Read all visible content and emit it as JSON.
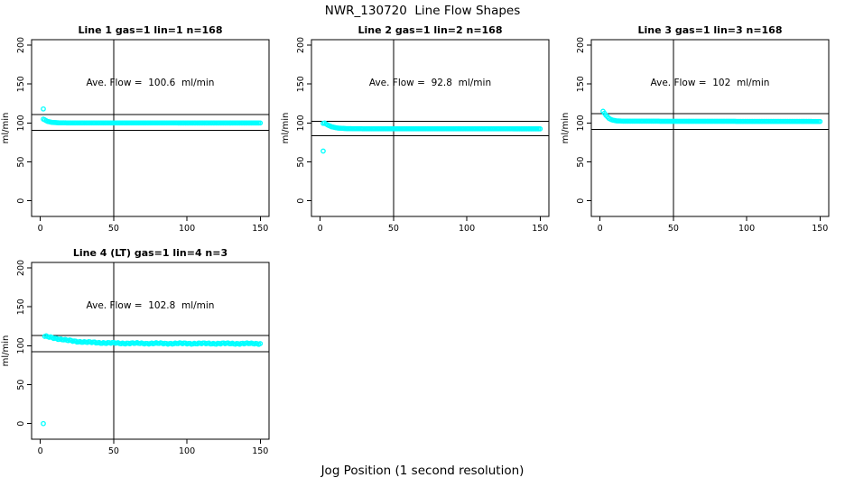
{
  "page_title": "NWR_130720  Line Flow Shapes",
  "outer_x_axis_label": "Jog Position (1 second resolution)",
  "colors": {
    "background": "#ffffff",
    "axis": "#000000",
    "point": "#00ffff",
    "text": "#000000"
  },
  "chart_data": [
    {
      "type": "scatter",
      "title": "Line 1 gas=1 lin=1 n=168",
      "line": 1,
      "gas": 1,
      "lin": 1,
      "n": 168,
      "ave_flow_ml_min": 100.6,
      "annotation": "Ave. Flow =  100.6  ml/min",
      "annotation_pos": [
        99,
        150
      ],
      "ylabel": "ml/min",
      "xticks": [
        0,
        50,
        100,
        150
      ],
      "yticks": [
        0,
        50,
        100,
        150,
        200
      ],
      "xlim": [
        -6,
        156
      ],
      "ylim": [
        -20,
        207
      ],
      "vline_x": 50,
      "ref_lines": [
        110.7,
        90.5
      ],
      "series": [
        {
          "name": "flow-trace",
          "step": 1,
          "noise": 0,
          "anchors": [
            [
              2,
              105
            ],
            [
              3,
              104
            ],
            [
              5,
              102
            ],
            [
              8,
              100.8
            ],
            [
              12,
              100.3
            ],
            [
              20,
              100.1
            ],
            [
              150,
              100
            ]
          ]
        }
      ],
      "outliers": [
        [
          2,
          118
        ]
      ]
    },
    {
      "type": "scatter",
      "title": "Line 2 gas=1 lin=2 n=168",
      "line": 2,
      "gas": 1,
      "lin": 2,
      "n": 168,
      "ave_flow_ml_min": 92.8,
      "annotation": "Ave. Flow =  92.8  ml/min",
      "annotation_pos": [
        99,
        150
      ],
      "ylabel": "ml/min",
      "xticks": [
        0,
        50,
        100,
        150
      ],
      "yticks": [
        0,
        50,
        100,
        150,
        200
      ],
      "xlim": [
        -6,
        156
      ],
      "ylim": [
        -20,
        207
      ],
      "vline_x": 50,
      "ref_lines": [
        102.1,
        83.5
      ],
      "series": [
        {
          "name": "flow-trace",
          "step": 1,
          "noise": 0,
          "anchors": [
            [
              2,
              99.5
            ],
            [
              3,
              100
            ],
            [
              5,
              97.5
            ],
            [
              8,
              95
            ],
            [
              12,
              93.5
            ],
            [
              18,
              92.8
            ],
            [
              30,
              92.6
            ],
            [
              150,
              92.5
            ]
          ]
        }
      ],
      "outliers": [
        [
          2,
          64
        ]
      ]
    },
    {
      "type": "scatter",
      "title": "Line 3 gas=1 lin=3 n=168",
      "line": 3,
      "gas": 1,
      "lin": 3,
      "n": 168,
      "ave_flow_ml_min": 102,
      "annotation": "Ave. Flow =  102  ml/min",
      "annotation_pos": [
        99,
        150
      ],
      "ylabel": "ml/min",
      "xticks": [
        0,
        50,
        100,
        150
      ],
      "yticks": [
        0,
        50,
        100,
        150,
        200
      ],
      "xlim": [
        -6,
        156
      ],
      "ylim": [
        -20,
        207
      ],
      "vline_x": 50,
      "ref_lines": [
        112.2,
        91.8
      ],
      "series": [
        {
          "name": "flow-trace",
          "step": 1,
          "noise": 0,
          "anchors": [
            [
              2,
              115
            ],
            [
              4,
              110
            ],
            [
              6,
              106
            ],
            [
              8,
              104
            ],
            [
              11,
              102.8
            ],
            [
              16,
              102.3
            ],
            [
              150,
              102
            ]
          ]
        }
      ],
      "outliers": []
    },
    {
      "type": "scatter",
      "title": "Line 4 (LT) gas=1 lin=4 n=3",
      "line": 4,
      "gas": 1,
      "lin": 4,
      "n": 3,
      "ave_flow_ml_min": 102.8,
      "annotation": "Ave. Flow =  102.8  ml/min",
      "annotation_pos": [
        99,
        150
      ],
      "ylabel": "ml/min",
      "xticks": [
        0,
        50,
        100,
        150
      ],
      "yticks": [
        0,
        50,
        100,
        150,
        200
      ],
      "xlim": [
        -6,
        156
      ],
      "ylim": [
        -20,
        207
      ],
      "vline_x": 50,
      "ref_lines": [
        113.1,
        92.5
      ],
      "series": [
        {
          "name": "flow-trace",
          "step": 1,
          "noise": 0.6,
          "anchors": [
            [
              3,
              112
            ],
            [
              5,
              111.5
            ],
            [
              8,
              110.5
            ],
            [
              12,
              109
            ],
            [
              18,
              107
            ],
            [
              25,
              105.5
            ],
            [
              33,
              104.5
            ],
            [
              42,
              103.8
            ],
            [
              55,
              103.2
            ],
            [
              80,
              103
            ],
            [
              150,
              102.8
            ]
          ]
        }
      ],
      "outliers": [
        [
          2,
          0
        ]
      ]
    }
  ]
}
